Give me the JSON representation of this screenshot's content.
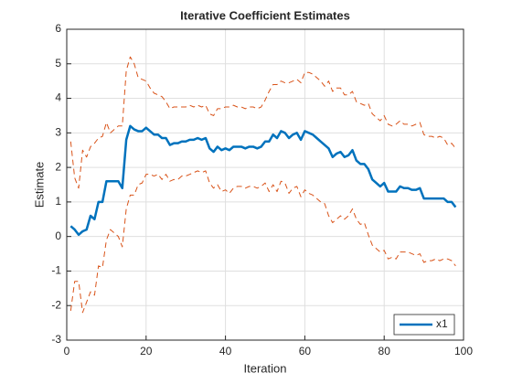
{
  "chart_data": {
    "type": "line",
    "title": "Iterative  Coefficient  Estimates",
    "x_label": "Iteration",
    "y_label": "Estimate",
    "x": [
      1,
      2,
      3,
      4,
      5,
      6,
      7,
      8,
      9,
      10,
      11,
      12,
      13,
      14,
      15,
      16,
      17,
      18,
      19,
      20,
      21,
      22,
      23,
      24,
      25,
      26,
      27,
      28,
      29,
      30,
      31,
      32,
      33,
      34,
      35,
      36,
      37,
      38,
      39,
      40,
      41,
      42,
      43,
      44,
      45,
      46,
      47,
      48,
      49,
      50,
      51,
      52,
      53,
      54,
      55,
      56,
      57,
      58,
      59,
      60,
      61,
      62,
      63,
      64,
      65,
      66,
      67,
      68,
      69,
      70,
      71,
      72,
      73,
      74,
      75,
      76,
      77,
      78,
      79,
      80,
      81,
      82,
      83,
      84,
      85,
      86,
      87,
      88,
      89,
      90,
      91,
      92,
      93,
      94,
      95,
      96,
      97,
      98
    ],
    "series": [
      {
        "name": "x1",
        "color": "#0072bd",
        "dash": false,
        "width": 2.5,
        "values": [
          0.3,
          0.2,
          0.05,
          0.15,
          0.2,
          0.6,
          0.5,
          1.0,
          1.0,
          1.6,
          1.6,
          1.6,
          1.6,
          1.4,
          2.8,
          3.2,
          3.1,
          3.05,
          3.05,
          3.15,
          3.05,
          2.95,
          2.95,
          2.85,
          2.85,
          2.65,
          2.7,
          2.7,
          2.75,
          2.75,
          2.8,
          2.8,
          2.85,
          2.8,
          2.85,
          2.55,
          2.45,
          2.6,
          2.5,
          2.55,
          2.5,
          2.6,
          2.6,
          2.6,
          2.55,
          2.6,
          2.6,
          2.55,
          2.6,
          2.75,
          2.75,
          2.95,
          2.85,
          3.05,
          3.0,
          2.85,
          2.95,
          3.0,
          2.8,
          3.05,
          3.0,
          2.95,
          2.85,
          2.75,
          2.65,
          2.55,
          2.3,
          2.4,
          2.45,
          2.3,
          2.35,
          2.5,
          2.2,
          2.1,
          2.1,
          1.95,
          1.65,
          1.55,
          1.45,
          1.55,
          1.3,
          1.3,
          1.3,
          1.45,
          1.4,
          1.4,
          1.35,
          1.35,
          1.4,
          1.1,
          1.1,
          1.1,
          1.1,
          1.1,
          1.1,
          1.0,
          1.0,
          0.85
        ]
      },
      {
        "color": "#d95319",
        "dash": true,
        "width": 1,
        "values": [
          2.75,
          1.7,
          1.4,
          2.5,
          2.3,
          2.6,
          2.7,
          2.85,
          2.9,
          3.3,
          3.0,
          3.1,
          3.2,
          3.2,
          4.8,
          5.2,
          5.0,
          4.6,
          4.55,
          4.5,
          4.3,
          4.15,
          4.1,
          4.05,
          3.9,
          3.7,
          3.75,
          3.75,
          3.75,
          3.75,
          3.8,
          3.75,
          3.8,
          3.75,
          3.8,
          3.55,
          3.5,
          3.7,
          3.7,
          3.75,
          3.75,
          3.8,
          3.75,
          3.75,
          3.7,
          3.75,
          3.75,
          3.7,
          3.75,
          3.95,
          4.2,
          4.4,
          4.4,
          4.5,
          4.45,
          4.45,
          4.5,
          4.55,
          4.45,
          4.75,
          4.75,
          4.7,
          4.6,
          4.5,
          4.35,
          4.5,
          4.2,
          4.3,
          4.3,
          4.1,
          4.1,
          4.2,
          3.9,
          3.85,
          3.8,
          3.85,
          3.55,
          3.45,
          3.35,
          3.5,
          3.25,
          3.2,
          3.25,
          3.35,
          3.25,
          3.25,
          3.2,
          3.25,
          3.3,
          2.95,
          2.9,
          2.9,
          2.85,
          2.9,
          2.85,
          2.65,
          2.7,
          2.55
        ]
      },
      {
        "color": "#d95319",
        "dash": true,
        "width": 1,
        "values": [
          -2.15,
          -1.3,
          -1.3,
          -2.2,
          -1.9,
          -1.6,
          -1.7,
          -0.85,
          -0.9,
          -0.1,
          0.2,
          0.1,
          0,
          -0.3,
          0.8,
          1.2,
          1.2,
          1.5,
          1.55,
          1.8,
          1.8,
          1.75,
          1.8,
          1.65,
          1.8,
          1.6,
          1.65,
          1.65,
          1.75,
          1.75,
          1.8,
          1.85,
          1.9,
          1.85,
          1.9,
          1.55,
          1.4,
          1.5,
          1.3,
          1.35,
          1.25,
          1.4,
          1.45,
          1.45,
          1.4,
          1.45,
          1.45,
          1.4,
          1.45,
          1.55,
          1.3,
          1.5,
          1.3,
          1.6,
          1.55,
          1.25,
          1.4,
          1.45,
          1.15,
          1.35,
          1.25,
          1.2,
          1.1,
          1.0,
          0.95,
          0.6,
          0.4,
          0.5,
          0.6,
          0.5,
          0.6,
          0.8,
          0.5,
          0.35,
          0.4,
          0.05,
          -0.25,
          -0.35,
          -0.45,
          -0.4,
          -0.65,
          -0.6,
          -0.65,
          -0.45,
          -0.45,
          -0.45,
          -0.5,
          -0.55,
          -0.5,
          -0.75,
          -0.7,
          -0.7,
          -0.65,
          -0.7,
          -0.65,
          -0.65,
          -0.7,
          -0.85
        ]
      }
    ],
    "xlim": [
      0,
      100
    ],
    "xticks": [
      0,
      20,
      40,
      60,
      80,
      100
    ],
    "ylim": [
      -3,
      6
    ],
    "yticks": [
      -3,
      -2,
      -1,
      0,
      1,
      2,
      3,
      4,
      5,
      6
    ],
    "grid": true,
    "legend": "southeast"
  }
}
